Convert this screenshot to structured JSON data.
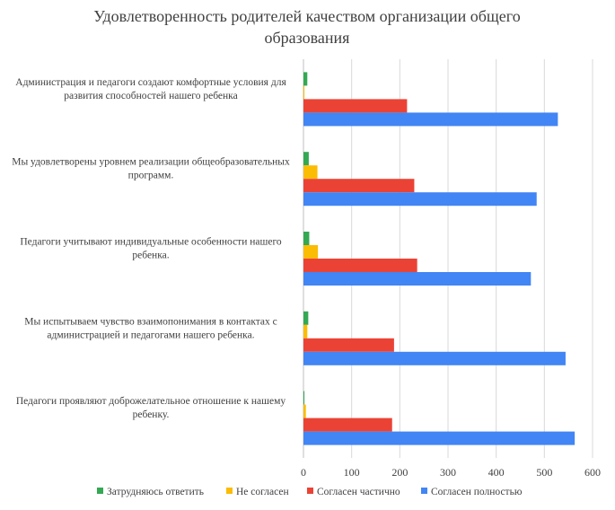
{
  "chart_data": {
    "type": "bar",
    "orientation": "horizontal",
    "title": "Удовлетворенность родителей качеством организации общего образования",
    "title_lines": [
      "Удовлетворенность родителей качеством организации общего",
      "образования"
    ],
    "categories": [
      "Администрация и педагоги создают комфортные условия для развития способностей нашего ребенка",
      "Мы удовлетворены уровнем реализации общеобразовательных программ.",
      "Педагоги учитывают индивидуальные особенности нашего ребенка.",
      "Мы испытываем чувство взаимопонимания в контактах с администрацией и педагогами нашего ребенка.",
      "Педагоги проявляют доброжелательное отношение к нашему ребенку."
    ],
    "category_lines": [
      [
        "Администрация и педагоги создают комфортные условия для",
        "развития способностей нашего ребенка"
      ],
      [
        "Мы удовлетворены уровнем реализации общеобразовательных",
        "программ."
      ],
      [
        "Педагоги учитывают индивидуальные особенности нашего",
        "ребенка."
      ],
      [
        "Мы испытываем чувство взаимопонимания в контактах с",
        "администрацией и педагогами нашего ребенка."
      ],
      [
        "Педагоги проявляют доброжелательное отношение к нашему",
        "ребенку."
      ]
    ],
    "series": [
      {
        "name": "Затрудняюсь ответить",
        "color": "#34a853",
        "values": [
          8,
          11,
          12,
          10,
          2
        ]
      },
      {
        "name": "Не согласен",
        "color": "#fbbc04",
        "values": [
          2,
          29,
          30,
          8,
          5
        ]
      },
      {
        "name": "Согласен частично",
        "color": "#ea4335",
        "values": [
          215,
          230,
          236,
          188,
          184
        ]
      },
      {
        "name": "Согласен полностью",
        "color": "#4285f4",
        "values": [
          528,
          484,
          472,
          544,
          563
        ]
      }
    ],
    "xlim": [
      0,
      600
    ],
    "xticks": [
      "0",
      "100",
      "200",
      "300",
      "400",
      "500",
      "600"
    ],
    "grid": true,
    "legend_position": "bottom"
  }
}
